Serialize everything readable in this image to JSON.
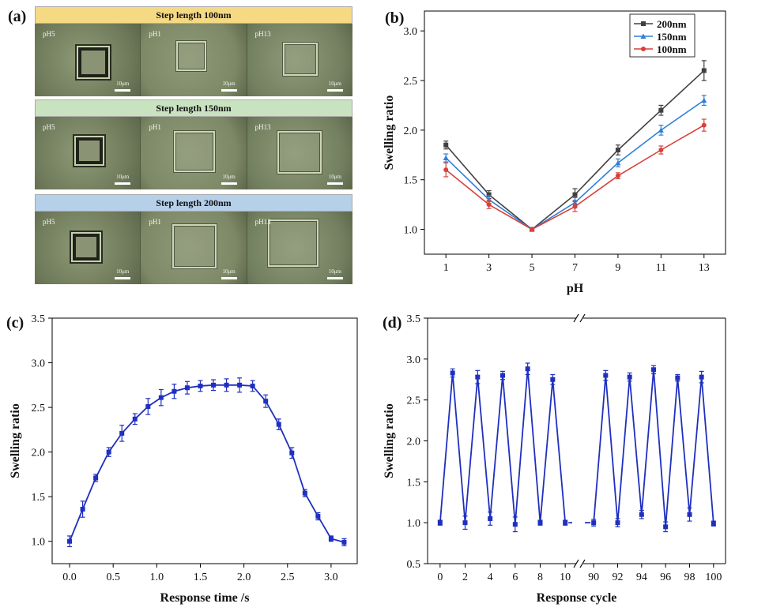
{
  "panel_letters": {
    "a": "(a)",
    "b": "(b)",
    "c": "(c)",
    "d": "(d)"
  },
  "panel_a": {
    "rows": [
      {
        "header": "Step length 100nm",
        "header_color": "#f6d983",
        "frames": [
          {
            "label": "pH5",
            "scalebar": "10μm"
          },
          {
            "label": "pH1",
            "scalebar": "10μm"
          },
          {
            "label": "pH13",
            "scalebar": "10μm"
          }
        ]
      },
      {
        "header": "Step length 150nm",
        "header_color": "#c9e2bf",
        "frames": [
          {
            "label": "pH5",
            "scalebar": "10μm"
          },
          {
            "label": "pH1",
            "scalebar": "10μm"
          },
          {
            "label": "pH13",
            "scalebar": "10μm"
          }
        ]
      },
      {
        "header": "Step length 200nm",
        "header_color": "#b7d0ea",
        "frames": [
          {
            "label": "pH5",
            "scalebar": "10μm"
          },
          {
            "label": "pH1",
            "scalebar": "10μm"
          },
          {
            "label": "pH13",
            "scalebar": "10μm"
          }
        ]
      }
    ]
  },
  "chart_data": [
    {
      "panel": "b",
      "type": "line",
      "xlabel": "pH",
      "ylabel": "Swelling ratio",
      "xlim": [
        0,
        14
      ],
      "ylim": [
        0.75,
        3.2
      ],
      "xticks": [
        1,
        3,
        5,
        7,
        9,
        11,
        13
      ],
      "yticks": [
        1.0,
        1.5,
        2.0,
        2.5,
        3.0
      ],
      "ytick_labels": [
        "1.0",
        "1.5",
        "2.0",
        "2.5",
        "3.0"
      ],
      "x": [
        1,
        3,
        5,
        7,
        9,
        11,
        13
      ],
      "legend_position": "top-right",
      "series": [
        {
          "name": "200nm",
          "color": "#404040",
          "marker": "square",
          "values": [
            1.85,
            1.35,
            1.0,
            1.35,
            1.8,
            2.2,
            2.6
          ],
          "errors": [
            0.04,
            0.04,
            0.01,
            0.06,
            0.05,
            0.05,
            0.1
          ]
        },
        {
          "name": "150nm",
          "color": "#2f7fd8",
          "marker": "triangle",
          "values": [
            1.72,
            1.3,
            1.0,
            1.27,
            1.67,
            2.0,
            2.3
          ],
          "errors": [
            0.04,
            0.04,
            0.01,
            0.05,
            0.04,
            0.05,
            0.05
          ]
        },
        {
          "name": "100nm",
          "color": "#d9403a",
          "marker": "circle",
          "values": [
            1.6,
            1.25,
            1.0,
            1.23,
            1.54,
            1.8,
            2.05
          ],
          "errors": [
            0.07,
            0.04,
            0.01,
            0.05,
            0.03,
            0.04,
            0.06
          ]
        }
      ]
    },
    {
      "panel": "c",
      "type": "line",
      "xlabel": "Response time /s",
      "ylabel": "Swelling ratio",
      "xlim": [
        -0.2,
        3.3
      ],
      "ylim": [
        0.75,
        3.5
      ],
      "xticks": [
        0.0,
        0.5,
        1.0,
        1.5,
        2.0,
        2.5,
        3.0
      ],
      "xtick_labels": [
        "0.0",
        "0.5",
        "1.0",
        "1.5",
        "2.0",
        "2.5",
        "3.0"
      ],
      "yticks": [
        1.0,
        1.5,
        2.0,
        2.5,
        3.0,
        3.5
      ],
      "ytick_labels": [
        "1.0",
        "1.5",
        "2.0",
        "2.5",
        "3.0",
        "3.5"
      ],
      "series": [
        {
          "color": "#1f2fbf",
          "x": [
            0.0,
            0.15,
            0.3,
            0.45,
            0.6,
            0.75,
            0.9,
            1.05,
            1.2,
            1.35,
            1.5,
            1.65,
            1.8,
            1.95,
            2.1,
            2.25,
            2.4,
            2.55,
            2.7,
            2.85,
            3.0,
            3.15
          ],
          "values": [
            1.0,
            1.36,
            1.71,
            2.0,
            2.21,
            2.37,
            2.51,
            2.61,
            2.68,
            2.72,
            2.74,
            2.75,
            2.75,
            2.75,
            2.74,
            2.57,
            2.31,
            1.99,
            1.54,
            1.28,
            1.03,
            0.99
          ],
          "errors": [
            0.06,
            0.09,
            0.04,
            0.05,
            0.09,
            0.06,
            0.09,
            0.09,
            0.08,
            0.07,
            0.06,
            0.06,
            0.07,
            0.08,
            0.06,
            0.07,
            0.06,
            0.06,
            0.04,
            0.04,
            0.03,
            0.04
          ]
        }
      ]
    },
    {
      "panel": "d",
      "type": "line",
      "xlabel": "Response cycle",
      "ylabel": "Swelling ratio",
      "ylim": [
        0.5,
        3.5
      ],
      "yticks": [
        0.5,
        1.0,
        1.5,
        2.0,
        2.5,
        3.0,
        3.5
      ],
      "ytick_labels": [
        "0.5",
        "1.0",
        "1.5",
        "2.0",
        "2.5",
        "3.0",
        "3.5"
      ],
      "axis_break": true,
      "segments": [
        {
          "xlim": [
            -1,
            11
          ],
          "xticks": [
            0,
            2,
            4,
            6,
            8,
            10
          ],
          "x": [
            0,
            1,
            2,
            3,
            4,
            5,
            6,
            7,
            8,
            9,
            10
          ],
          "values": [
            1.0,
            2.83,
            1.0,
            2.78,
            1.05,
            2.8,
            0.98,
            2.88,
            1.0,
            2.75,
            1.0
          ],
          "errors": [
            0.03,
            0.05,
            0.08,
            0.08,
            0.08,
            0.05,
            0.09,
            0.07,
            0.03,
            0.06,
            0.03
          ]
        },
        {
          "xlim": [
            89,
            101
          ],
          "xticks": [
            90,
            92,
            94,
            96,
            98,
            100
          ],
          "x": [
            90,
            91,
            92,
            93,
            94,
            95,
            96,
            97,
            98,
            99,
            100
          ],
          "values": [
            1.0,
            2.8,
            1.0,
            2.78,
            1.1,
            2.87,
            0.95,
            2.77,
            1.1,
            2.78,
            0.99
          ],
          "errors": [
            0.04,
            0.06,
            0.05,
            0.05,
            0.05,
            0.05,
            0.06,
            0.04,
            0.08,
            0.07,
            0.03
          ]
        }
      ],
      "color": "#1f2fbf"
    }
  ]
}
